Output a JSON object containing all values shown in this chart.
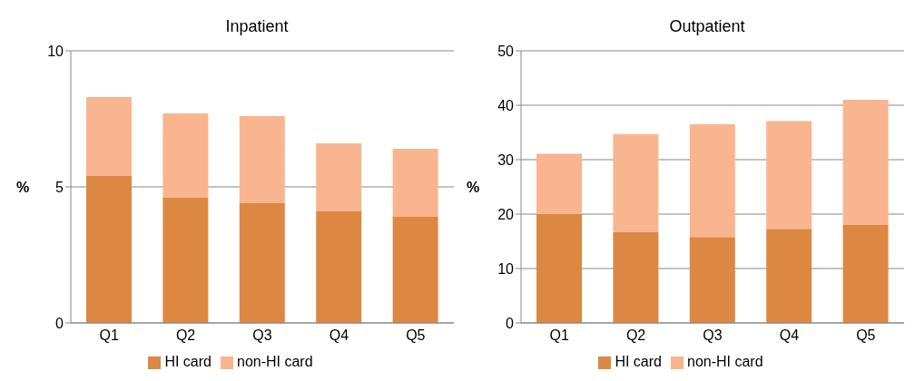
{
  "chart_data": [
    {
      "type": "bar",
      "title": "Inpatient",
      "ylabel": "%",
      "categories": [
        "Q1",
        "Q2",
        "Q3",
        "Q4",
        "Q5"
      ],
      "stacked": true,
      "ylim": [
        0,
        10
      ],
      "yticks": [
        0,
        5,
        10
      ],
      "grid": "y",
      "legend": "bottom",
      "series": [
        {
          "name": "HI card",
          "color": "#dc8843",
          "values": [
            5.4,
            4.6,
            4.4,
            4.1,
            3.9
          ]
        },
        {
          "name": "non-HI card",
          "color": "#f9b58f",
          "values": [
            2.9,
            3.1,
            3.2,
            2.5,
            2.5
          ]
        }
      ]
    },
    {
      "type": "bar",
      "title": "Outpatient",
      "ylabel": "%",
      "categories": [
        "Q1",
        "Q2",
        "Q3",
        "Q4",
        "Q5"
      ],
      "stacked": true,
      "ylim": [
        0,
        50
      ],
      "yticks": [
        0,
        10,
        20,
        30,
        40,
        50
      ],
      "grid": "y",
      "legend": "bottom",
      "series": [
        {
          "name": "HI card",
          "color": "#dc8843",
          "values": [
            20,
            16.7,
            15.8,
            17.3,
            18
          ]
        },
        {
          "name": "non-HI card",
          "color": "#f9b58f",
          "values": [
            11.1,
            18,
            20.7,
            19.8,
            23
          ]
        }
      ]
    }
  ]
}
